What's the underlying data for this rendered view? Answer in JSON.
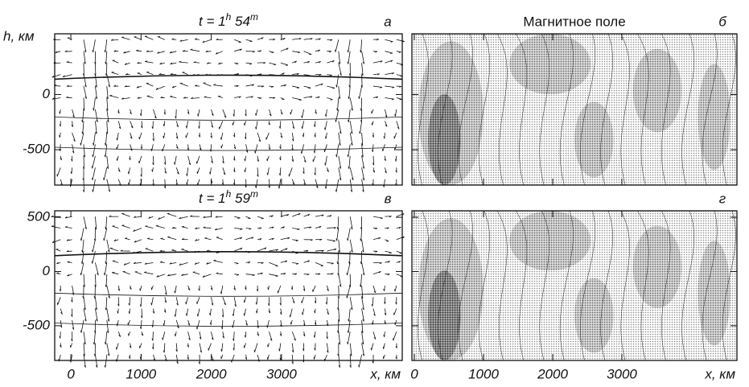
{
  "panels": [
    {
      "letter": "а",
      "time": {
        "t": "t = 1",
        "h": "h",
        "min": " 54",
        "m": "m"
      },
      "y_label": "h, км",
      "ylim": [
        -820,
        550
      ],
      "yticks": [
        0,
        -500
      ]
    },
    {
      "letter": "б",
      "title": "Магнитное поле"
    },
    {
      "letter": "в",
      "time": {
        "t": "t = 1",
        "h": "h",
        "min": " 59",
        "m": "m"
      },
      "ylim": [
        -820,
        560
      ],
      "yticks": [
        500,
        0,
        -500
      ],
      "xlim": [
        -230,
        4720
      ],
      "xticks": [
        0,
        1000,
        2000,
        3000
      ],
      "x_label": "x, км"
    },
    {
      "letter": "г",
      "xlim": [
        -35,
        4663
      ],
      "xticks": [
        0,
        1000,
        2000,
        3000
      ],
      "x_label": "x, км"
    }
  ]
}
